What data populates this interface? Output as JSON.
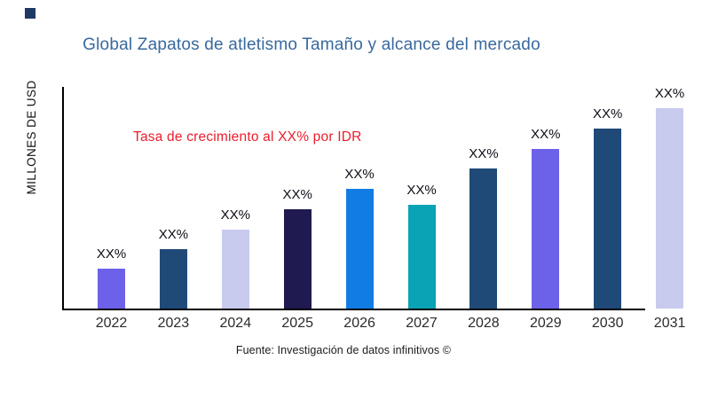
{
  "page": {
    "title_color": "#38699E",
    "annotation_color": "#EC1C2C",
    "brand_color": "#1F3864",
    "axis_color": "#000000"
  },
  "chart_data": {
    "type": "bar",
    "title": "Global Zapatos de atletismo Tamaño y alcance del mercado",
    "ylabel": "MILLONES DE USD",
    "xlabel": "",
    "annotation": "Tasa de crecimiento al XX% por IDR",
    "source": "Fuente: Investigación de datos infinitivos ©",
    "categories": [
      "2022",
      "2023",
      "2024",
      "2025",
      "2026",
      "2027",
      "2028",
      "2029",
      "2030",
      "2031"
    ],
    "values": [
      45,
      67,
      89,
      112,
      135,
      117,
      158,
      180,
      203,
      226
    ],
    "bar_labels": [
      "XX%",
      "XX%",
      "XX%",
      "XX%",
      "XX%",
      "XX%",
      "XX%",
      "XX%",
      "XX%",
      "XX%"
    ],
    "bar_colors": [
      "#6C61E8",
      "#1F4A78",
      "#C8CBEE",
      "#1F1A4F",
      "#117CE3",
      "#0AA2B5",
      "#1F4A78",
      "#6C61E8",
      "#1F4A78",
      "#C8CBEE"
    ],
    "ylim": [
      0,
      250
    ],
    "grid": false,
    "legend": "none"
  }
}
